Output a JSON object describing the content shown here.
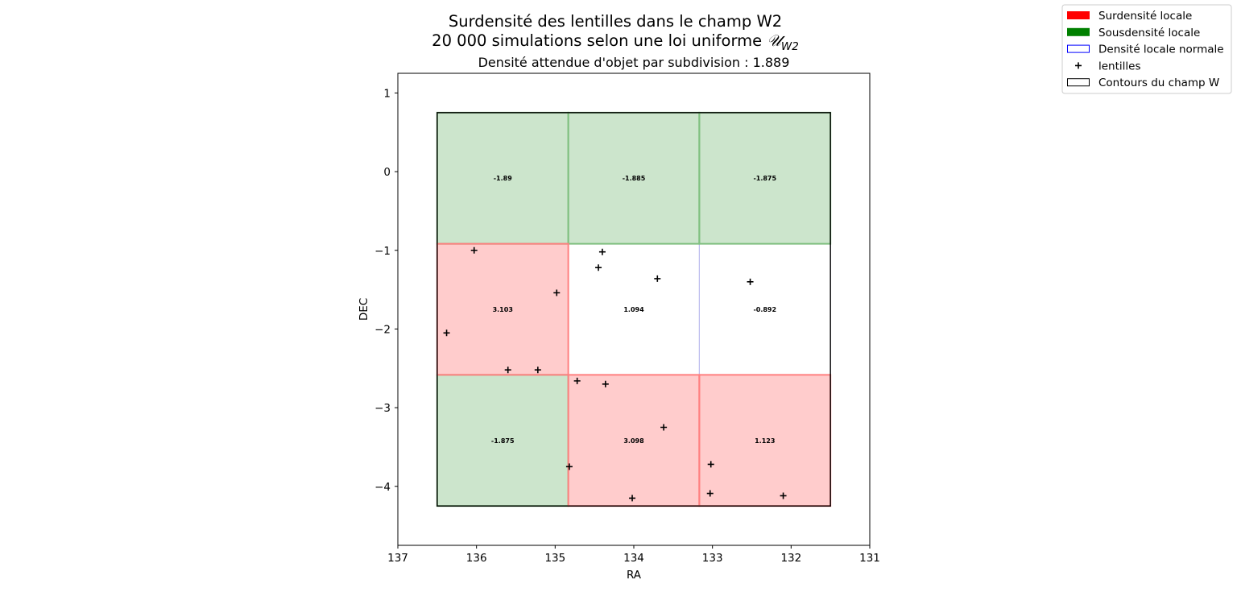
{
  "chart_data": {
    "type": "heatmap",
    "title": "Surdensité des lentilles dans le champ W2",
    "title_line2_prefix": "20 000 simulations selon une loi uniforme ",
    "title_line2_math": "𝒰",
    "title_line2_math_sub": "W2",
    "subtitle": "Densité attendue d'objet par subdivision : 1.889",
    "xlabel": "RA",
    "ylabel": "DEC",
    "xlim": [
      137,
      131
    ],
    "ylim": [
      -4.75,
      1.25
    ],
    "x_inverted": true,
    "xticks": [
      137,
      136,
      135,
      134,
      133,
      132,
      131
    ],
    "xtick_labels": [
      "137",
      "136",
      "135",
      "134",
      "133",
      "132",
      "131"
    ],
    "yticks": [
      1,
      0,
      -1,
      -2,
      -3,
      -4
    ],
    "ytick_labels": [
      "1",
      "0",
      "−1",
      "−2",
      "−3",
      "−4"
    ],
    "field_contour": {
      "ra": [
        136.5,
        131.5
      ],
      "dec": [
        -4.25,
        0.75
      ]
    },
    "cells": [
      {
        "ra": [
          136.5,
          134.833
        ],
        "dec": [
          -0.917,
          0.75
        ],
        "value": -1.89,
        "label": "-1.89",
        "status": "under"
      },
      {
        "ra": [
          134.833,
          133.167
        ],
        "dec": [
          -0.917,
          0.75
        ],
        "value": -1.885,
        "label": "-1.885",
        "status": "under"
      },
      {
        "ra": [
          133.167,
          131.5
        ],
        "dec": [
          -0.917,
          0.75
        ],
        "value": -1.875,
        "label": "-1.875",
        "status": "under"
      },
      {
        "ra": [
          136.5,
          134.833
        ],
        "dec": [
          -2.583,
          -0.917
        ],
        "value": 3.103,
        "label": "3.103",
        "status": "over"
      },
      {
        "ra": [
          134.833,
          133.167
        ],
        "dec": [
          -2.583,
          -0.917
        ],
        "value": 1.094,
        "label": "1.094",
        "status": "normal"
      },
      {
        "ra": [
          133.167,
          131.5
        ],
        "dec": [
          -2.583,
          -0.917
        ],
        "value": -0.892,
        "label": "-0.892",
        "status": "normal"
      },
      {
        "ra": [
          136.5,
          134.833
        ],
        "dec": [
          -4.25,
          -2.583
        ],
        "value": -1.875,
        "label": "-1.875",
        "status": "under"
      },
      {
        "ra": [
          134.833,
          133.167
        ],
        "dec": [
          -4.25,
          -2.583
        ],
        "value": 3.098,
        "label": "3.098",
        "status": "over"
      },
      {
        "ra": [
          133.167,
          131.5
        ],
        "dec": [
          -4.25,
          -2.583
        ],
        "value": 1.123,
        "label": "1.123",
        "status": "over"
      }
    ],
    "lenses": [
      {
        "ra": 136.03,
        "dec": -1.0
      },
      {
        "ra": 134.4,
        "dec": -1.02
      },
      {
        "ra": 134.45,
        "dec": -1.22
      },
      {
        "ra": 133.7,
        "dec": -1.36
      },
      {
        "ra": 132.52,
        "dec": -1.4
      },
      {
        "ra": 134.98,
        "dec": -1.54
      },
      {
        "ra": 136.38,
        "dec": -2.05
      },
      {
        "ra": 135.6,
        "dec": -2.52
      },
      {
        "ra": 135.22,
        "dec": -2.52
      },
      {
        "ra": 134.72,
        "dec": -2.66
      },
      {
        "ra": 134.36,
        "dec": -2.7
      },
      {
        "ra": 133.62,
        "dec": -3.25
      },
      {
        "ra": 134.82,
        "dec": -3.75
      },
      {
        "ra": 133.02,
        "dec": -3.72
      },
      {
        "ra": 133.03,
        "dec": -4.09
      },
      {
        "ra": 132.1,
        "dec": -4.12
      },
      {
        "ra": 134.02,
        "dec": -4.15
      }
    ],
    "legend": {
      "placement": "top-right",
      "entries": [
        {
          "label": "Surdensité locale",
          "kind": "patch",
          "color": "#ff0000"
        },
        {
          "label": "Sousdensité locale",
          "kind": "patch",
          "color": "#008000"
        },
        {
          "label": "Densité locale normale",
          "kind": "outline",
          "color": "#0000ff"
        },
        {
          "label": "lentilles",
          "kind": "marker",
          "color": "#000000"
        },
        {
          "label": "Contours du champ W",
          "kind": "outline",
          "color": "#000000"
        }
      ]
    },
    "colors": {
      "over_fill": "#ffcccc",
      "under_fill": "#cce5cc",
      "normal_fill": "#ffffff",
      "over_edge": "#ff8080",
      "under_edge": "#80c080",
      "normal_edge": "#bbbbee",
      "contour": "#000000",
      "lens": "#000000"
    }
  }
}
